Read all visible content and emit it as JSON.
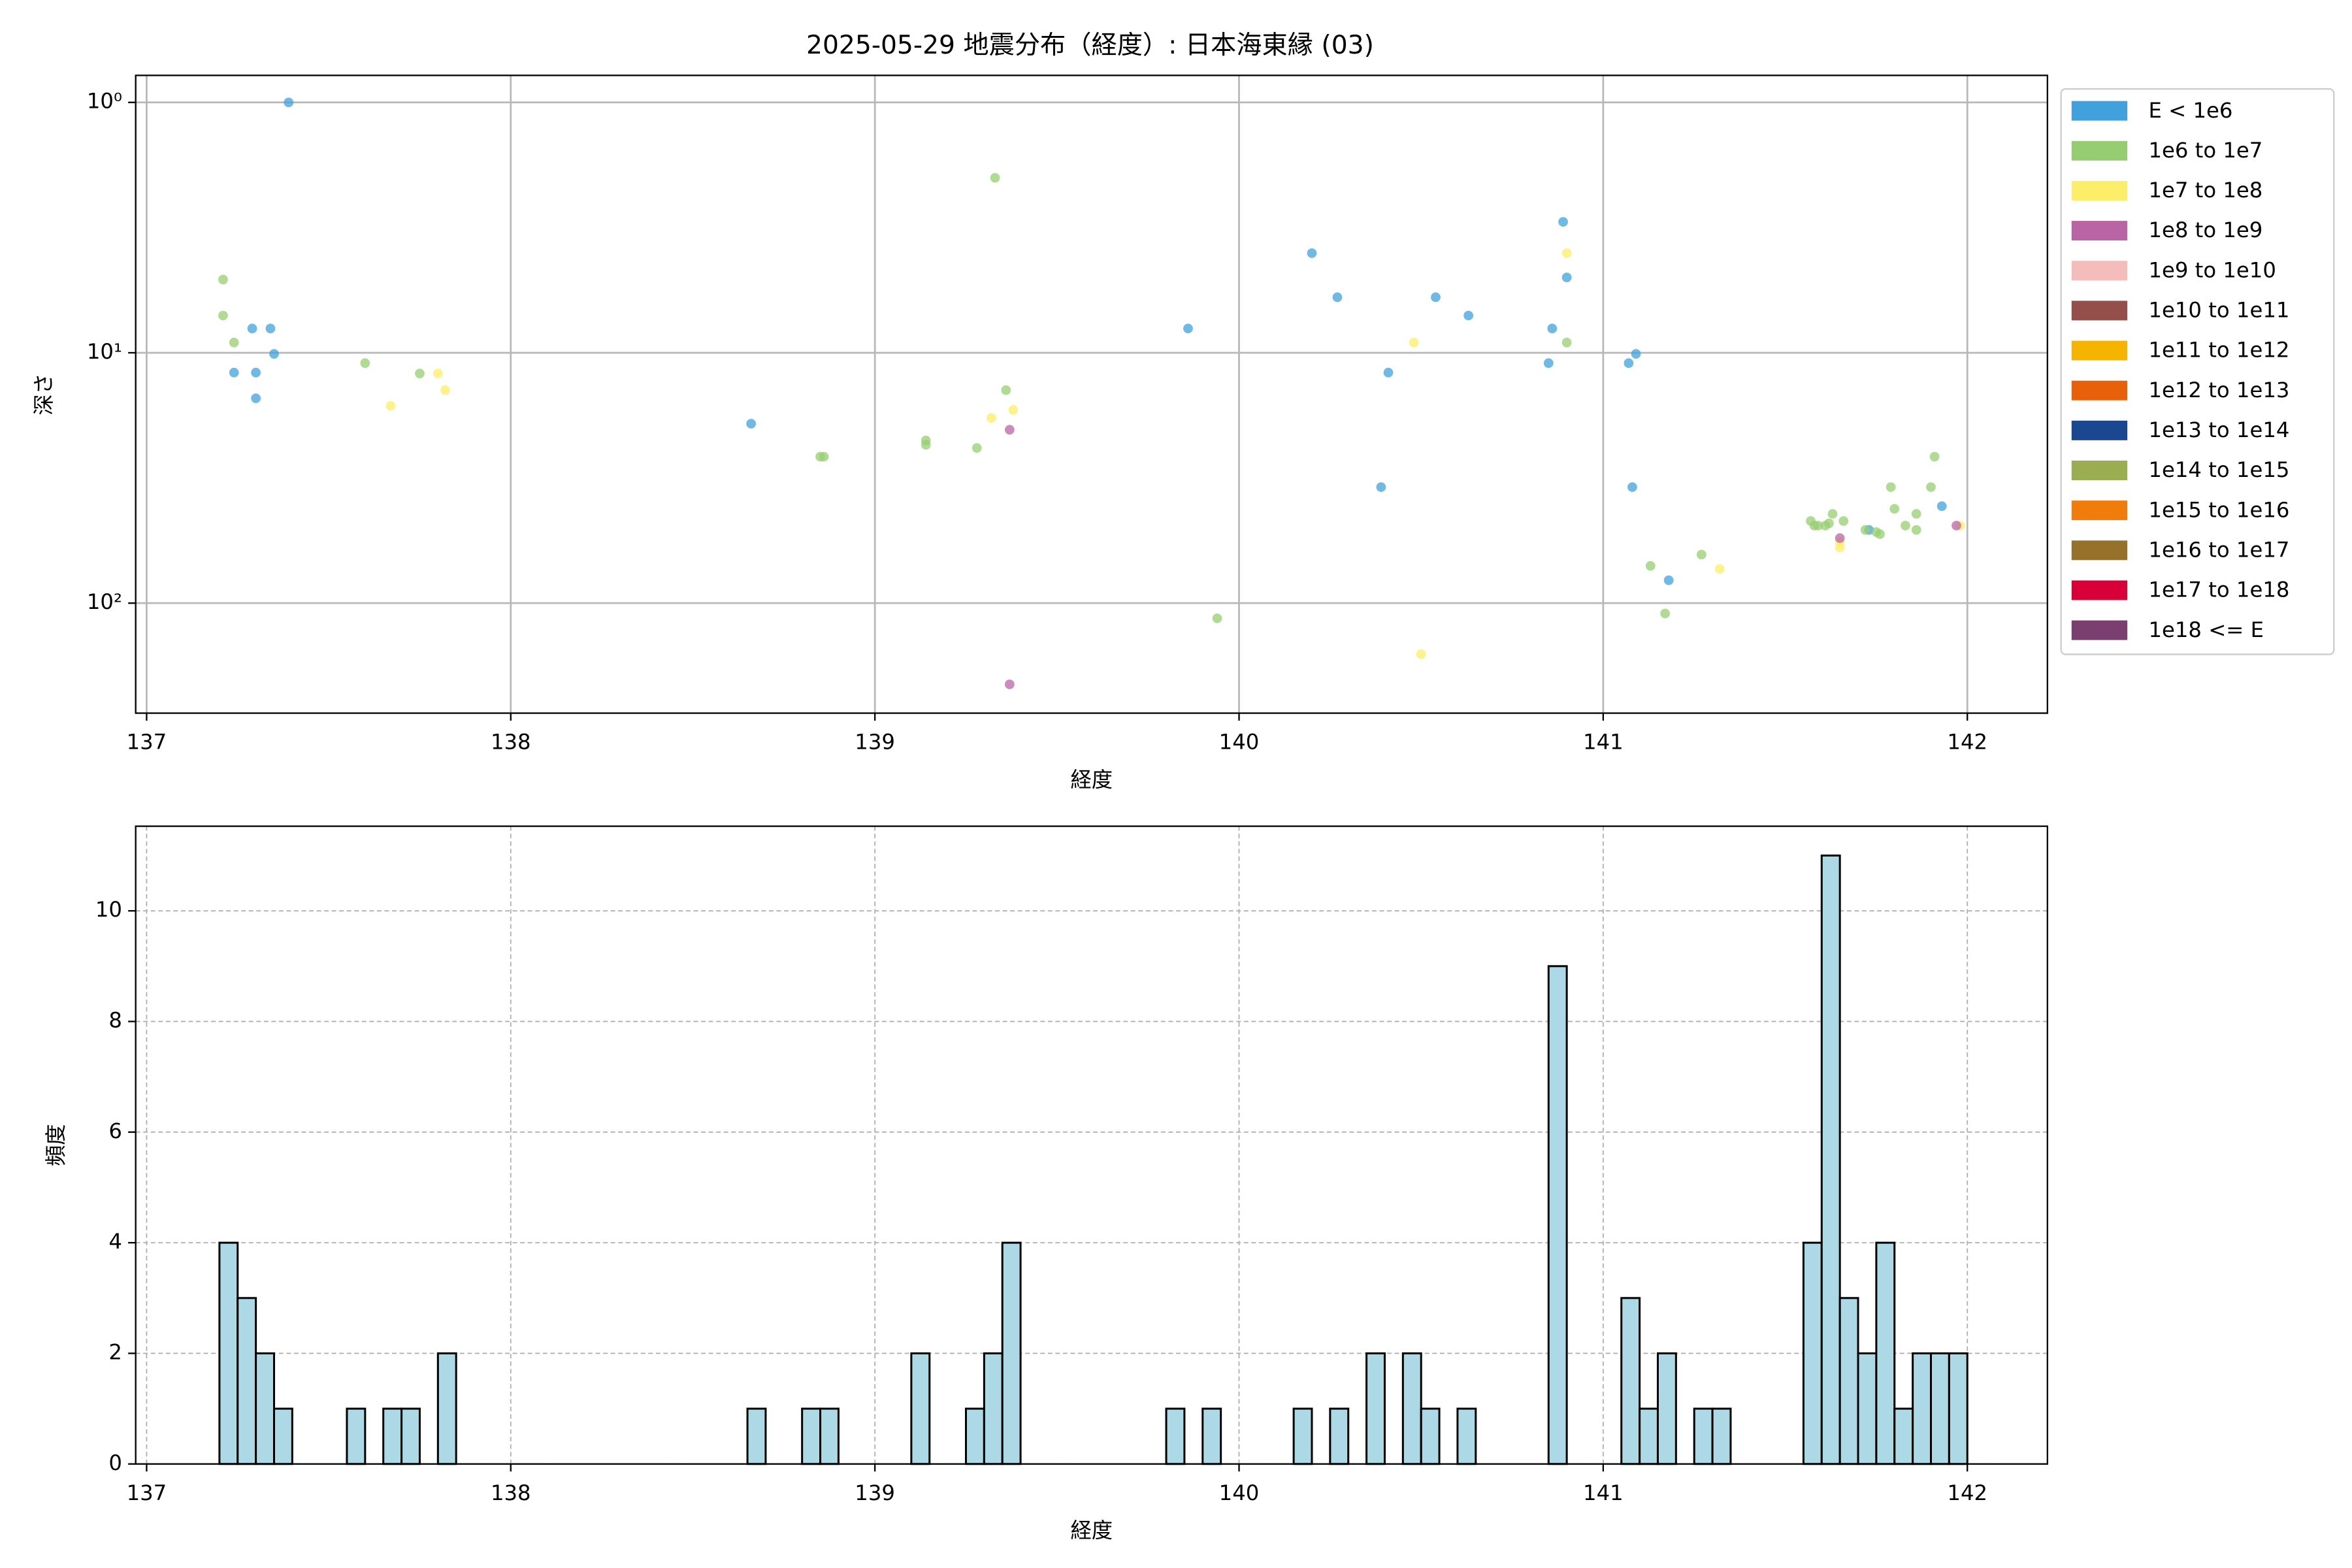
{
  "chart_data": [
    {
      "type": "scatter",
      "title": "2025-05-29 地震分布（経度）: 日本海東縁 (03)",
      "xlabel": "経度",
      "ylabel": "深さ",
      "xlim": [
        136.97,
        142.22
      ],
      "xticks": [
        137,
        138,
        139,
        140,
        141,
        142
      ],
      "ylim": [
        0.78,
        275
      ],
      "ylog": true,
      "yinvert": true,
      "yticks": [
        {
          "value": 1,
          "label": "10⁰"
        },
        {
          "value": 10,
          "label": "10¹"
        },
        {
          "value": 100,
          "label": "10²"
        }
      ],
      "grid": true,
      "legend": "outside-right",
      "series": [
        {
          "name": "E < 1e6",
          "color": "#41a1dc",
          "x": [
            137.39,
            137.29,
            137.34,
            137.35,
            137.24,
            137.3,
            137.3,
            138.66,
            139.86,
            140.2,
            140.27,
            140.54,
            140.63,
            140.41,
            140.39,
            140.86,
            140.85,
            140.89,
            140.9,
            141.07,
            141.09,
            141.08,
            141.18,
            141.73,
            141.93
          ],
          "values": [
            1.0,
            8.0,
            8.0,
            10.1,
            12.0,
            12.0,
            15.2,
            19.2,
            8.0,
            4.0,
            6.0,
            6.0,
            7.1,
            12.0,
            34.4,
            8.0,
            11.0,
            3.0,
            5.0,
            11.0,
            10.1,
            34.4,
            81,
            51,
            41
          ]
        },
        {
          "name": "1e6 to 1e7",
          "color": "#97cd72",
          "x": [
            137.21,
            137.21,
            137.24,
            137.6,
            137.75,
            138.85,
            138.86,
            139.14,
            139.14,
            139.28,
            139.33,
            139.36,
            139.94,
            140.9,
            141.13,
            141.17,
            141.27,
            141.91,
            141.9,
            141.8,
            141.79,
            141.86,
            141.83,
            141.86,
            141.57,
            141.58,
            141.59,
            141.61,
            141.62,
            141.63,
            141.66,
            141.75,
            141.76,
            141.72
          ],
          "values": [
            5.1,
            7.1,
            9.1,
            11.0,
            12.1,
            26,
            26,
            22.4,
            23.3,
            24,
            2.0,
            14.1,
            115,
            9.1,
            71,
            110,
            64,
            26,
            34.4,
            42,
            34.4,
            44,
            49,
            51,
            47,
            49,
            49,
            49,
            48,
            44,
            47,
            52,
            53,
            51
          ]
        },
        {
          "name": "1e7 to 1e8",
          "color": "#fcee68",
          "x": [
            137.67,
            137.8,
            137.82,
            139.32,
            139.38,
            140.48,
            140.5,
            140.9,
            141.32,
            141.65,
            141.65,
            141.98
          ],
          "values": [
            16.3,
            12.1,
            14.1,
            18.2,
            16.9,
            9.1,
            160,
            4.0,
            73,
            60,
            57,
            49
          ]
        },
        {
          "name": "1e8 to 1e9",
          "color": "#b964a4",
          "x": [
            139.37,
            139.37,
            141.65,
            141.97
          ],
          "values": [
            20.3,
            211,
            55,
            49
          ]
        },
        {
          "name": "1e9 to 1e10",
          "color": "#f4bcba",
          "x": [],
          "values": []
        },
        {
          "name": "1e10 to 1e11",
          "color": "#954f4a",
          "x": [],
          "values": []
        },
        {
          "name": "1e11 to 1e12",
          "color": "#f5b400",
          "x": [],
          "values": []
        },
        {
          "name": "1e12 to 1e13",
          "color": "#e8600a",
          "x": [],
          "values": []
        },
        {
          "name": "1e13 to 1e14",
          "color": "#1b4690",
          "x": [],
          "values": []
        },
        {
          "name": "1e14 to 1e15",
          "color": "#9aad51",
          "x": [],
          "values": []
        },
        {
          "name": "1e15 to 1e16",
          "color": "#f07c0c",
          "x": [],
          "values": []
        },
        {
          "name": "1e16 to 1e17",
          "color": "#95712a",
          "x": [],
          "values": []
        },
        {
          "name": "1e17 to 1e18",
          "color": "#d9003a",
          "x": [],
          "values": []
        },
        {
          "name": "1e18 <= E",
          "color": "#7a3f6f",
          "x": [],
          "values": []
        }
      ]
    },
    {
      "type": "histogram",
      "xlabel": "経度",
      "ylabel": "頻度",
      "xlim": [
        136.97,
        142.22
      ],
      "xticks": [
        137,
        138,
        139,
        140,
        141,
        142
      ],
      "ylim": [
        0,
        11.53
      ],
      "yticks": [
        0,
        2,
        4,
        6,
        8,
        10
      ],
      "grid": true,
      "color": "#add8e6",
      "edgecolor": "#000000",
      "bins": [
        137.2,
        137.25,
        137.3,
        137.35,
        137.4,
        137.45,
        137.5,
        137.55,
        137.6,
        137.65,
        137.7,
        137.75,
        137.8,
        137.85,
        137.9,
        137.95,
        138.0,
        138.05,
        138.1,
        138.15,
        138.2,
        138.25,
        138.3,
        138.35,
        138.4,
        138.45,
        138.5,
        138.55,
        138.6,
        138.65,
        138.7,
        138.75,
        138.8,
        138.85,
        138.9,
        138.95,
        139.0,
        139.05,
        139.1,
        139.15,
        139.2,
        139.25,
        139.3,
        139.35,
        139.4,
        139.45,
        139.5,
        139.55,
        139.6,
        139.65,
        139.7,
        139.75,
        139.8,
        139.85,
        139.9,
        139.95,
        140.0,
        140.05,
        140.1,
        140.15,
        140.2,
        140.25,
        140.3,
        140.35,
        140.4,
        140.45,
        140.5,
        140.55,
        140.6,
        140.65,
        140.7,
        140.75,
        140.8,
        140.85,
        140.9,
        140.95,
        141.0,
        141.05,
        141.1,
        141.15,
        141.2,
        141.25,
        141.3,
        141.35,
        141.4,
        141.45,
        141.5,
        141.55,
        141.6,
        141.65,
        141.7,
        141.75,
        141.8,
        141.85,
        141.9,
        141.95,
        142.0
      ],
      "values": [
        4,
        3,
        2,
        1,
        0,
        0,
        0,
        1,
        0,
        1,
        1,
        0,
        2,
        0,
        0,
        0,
        0,
        0,
        0,
        0,
        0,
        0,
        0,
        0,
        0,
        0,
        0,
        0,
        0,
        1,
        0,
        0,
        1,
        1,
        0,
        0,
        0,
        0,
        2,
        0,
        0,
        1,
        2,
        4,
        0,
        0,
        0,
        0,
        0,
        0,
        0,
        0,
        1,
        0,
        1,
        0,
        0,
        0,
        0,
        1,
        0,
        1,
        0,
        2,
        0,
        2,
        1,
        0,
        1,
        0,
        0,
        0,
        0,
        9,
        0,
        0,
        0,
        3,
        1,
        2,
        0,
        1,
        1,
        0,
        0,
        0,
        0,
        4,
        11,
        3,
        2,
        4,
        1,
        2,
        2,
        2
      ]
    }
  ]
}
